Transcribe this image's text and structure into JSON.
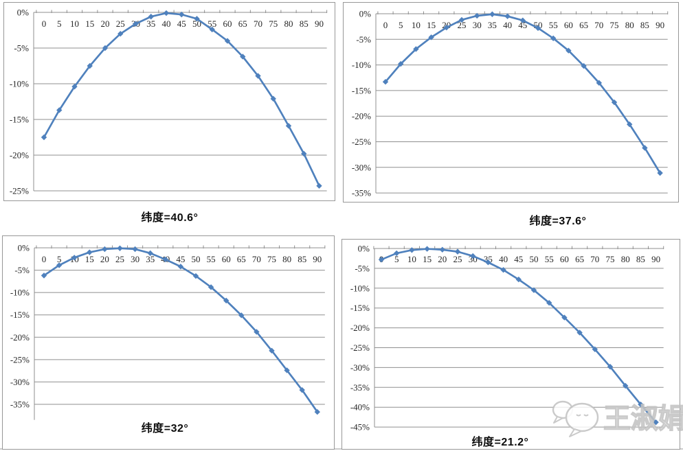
{
  "colors": {
    "line": "#4f81bd",
    "grid": "#8f8f8f",
    "axis": "#8f8f8f",
    "tick_label": "#262626",
    "title": "#0d0d0d",
    "box_border": "#979797",
    "watermark_outline": "#c3c3c3"
  },
  "watermark": {
    "text": "王淑娟",
    "icon": "chat-bubbles-icon"
  },
  "chart_data": [
    {
      "type": "line",
      "title": "纬度=40.6°",
      "x": [
        0,
        5,
        10,
        15,
        20,
        25,
        30,
        35,
        40,
        45,
        50,
        55,
        60,
        65,
        70,
        75,
        80,
        85,
        90
      ],
      "values": [
        -17.5,
        -13.7,
        -10.4,
        -7.5,
        -5.0,
        -3.0,
        -1.6,
        -0.6,
        -0.1,
        -0.3,
        -0.9,
        -2.4,
        -4.0,
        -6.2,
        -8.9,
        -12.1,
        -15.9,
        -19.8,
        -24.3
      ],
      "xlabel": "",
      "ylabel": "",
      "ylim": [
        -25,
        0
      ],
      "yticks": [
        0,
        -5,
        -10,
        -15,
        -20,
        -25
      ],
      "ytick_labels": [
        "0%",
        "-5%",
        "-10%",
        "-15%",
        "-20%",
        "-25%"
      ],
      "grid": true,
      "legend": "none",
      "line_color": "#4f81bd",
      "marker": "diamond"
    },
    {
      "type": "line",
      "title": "纬度=37.6°",
      "x": [
        0,
        5,
        10,
        15,
        20,
        25,
        30,
        35,
        40,
        45,
        50,
        55,
        60,
        65,
        70,
        75,
        80,
        85,
        90
      ],
      "values": [
        -13.3,
        -9.8,
        -6.9,
        -4.6,
        -2.7,
        -1.2,
        -0.4,
        -0.1,
        -0.5,
        -1.3,
        -2.8,
        -4.8,
        -7.2,
        -10.2,
        -13.5,
        -17.3,
        -21.6,
        -26.2,
        -31.1
      ],
      "xlabel": "",
      "ylabel": "",
      "ylim": [
        -35,
        0
      ],
      "yticks": [
        0,
        -5,
        -10,
        -15,
        -20,
        -25,
        -30,
        -35
      ],
      "ytick_labels": [
        "0%",
        "-5%",
        "-10%",
        "-15%",
        "-20%",
        "-25%",
        "-30%",
        "-35%"
      ],
      "grid": true,
      "legend": "none",
      "line_color": "#4f81bd",
      "marker": "diamond"
    },
    {
      "type": "line",
      "title": "纬度=32°",
      "x": [
        0,
        5,
        10,
        15,
        20,
        25,
        30,
        35,
        40,
        45,
        50,
        55,
        60,
        65,
        70,
        75,
        80,
        85,
        90
      ],
      "values": [
        -6.2,
        -3.9,
        -2.2,
        -1.0,
        -0.3,
        -0.1,
        -0.3,
        -1.2,
        -2.6,
        -4.2,
        -6.3,
        -8.8,
        -11.8,
        -15.1,
        -18.8,
        -23.0,
        -27.4,
        -31.8,
        -36.7
      ],
      "xlabel": "",
      "ylabel": "",
      "ylim": [
        -38.5,
        0
      ],
      "yticks": [
        0,
        -5,
        -10,
        -15,
        -20,
        -25,
        -30,
        -35
      ],
      "ytick_labels": [
        "0%",
        "-5%",
        "-10%",
        "-15%",
        "-20%",
        "-25%",
        "-30%",
        "-35%"
      ],
      "grid": true,
      "legend": "none",
      "line_color": "#4f81bd",
      "marker": "diamond"
    },
    {
      "type": "line",
      "title": "纬度=21.2°",
      "x": [
        0,
        5,
        10,
        15,
        20,
        25,
        30,
        35,
        40,
        45,
        50,
        55,
        60,
        65,
        70,
        75,
        80,
        85,
        90
      ],
      "values": [
        -2.8,
        -1.2,
        -0.4,
        -0.1,
        -0.3,
        -0.8,
        -1.9,
        -3.5,
        -5.4,
        -7.8,
        -10.5,
        -13.7,
        -17.4,
        -21.2,
        -25.4,
        -29.8,
        -34.6,
        -39.3,
        -43.8
      ],
      "xlabel": "",
      "ylabel": "",
      "ylim": [
        -45,
        0
      ],
      "yticks": [
        0,
        -5,
        -10,
        -15,
        -20,
        -25,
        -30,
        -35,
        -40,
        -45
      ],
      "ytick_labels": [
        "0%",
        "-5%",
        "-10%",
        "-15%",
        "-20%",
        "-25%",
        "-30%",
        "-35%",
        "-40%",
        "-45%"
      ],
      "grid": true,
      "legend": "none",
      "line_color": "#4f81bd",
      "marker": "diamond"
    }
  ]
}
